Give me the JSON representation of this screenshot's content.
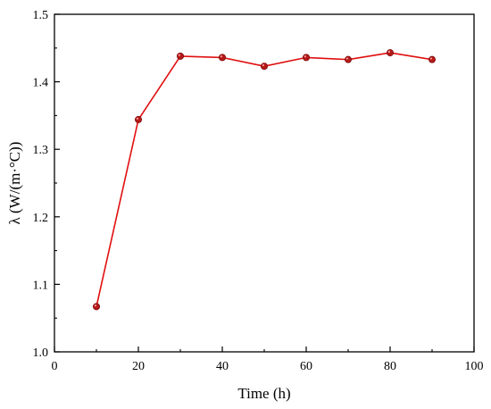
{
  "chart_data": {
    "type": "line",
    "title": "",
    "xlabel": "Time (h)",
    "ylabel": "λ (W/(m·°C))",
    "xlim": [
      0,
      100
    ],
    "ylim": [
      1.0,
      1.5
    ],
    "xticks": [
      "0",
      "20",
      "40",
      "60",
      "80",
      "100"
    ],
    "yticks": [
      "1.0",
      "1.1",
      "1.2",
      "1.3",
      "1.4",
      "1.5"
    ],
    "grid": false,
    "legend": "none",
    "series": [
      {
        "color": "#e01010",
        "x": [
          10,
          20,
          30,
          40,
          50,
          60,
          70,
          80,
          90
        ],
        "y": [
          1.067,
          1.344,
          1.438,
          1.436,
          1.423,
          1.436,
          1.433,
          1.443,
          1.433
        ]
      }
    ]
  }
}
